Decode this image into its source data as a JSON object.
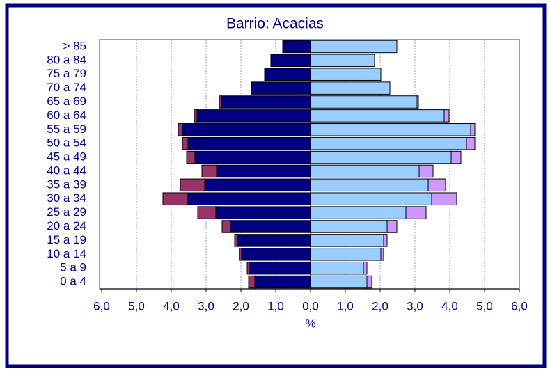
{
  "chart_data": {
    "type": "pyramid",
    "title": "Barrio: Acacias",
    "x_label": "%",
    "categories": [
      "0 a 4",
      "5 a 9",
      "10 a 14",
      "15 a 19",
      "20 a 24",
      "25 a 29",
      "30 a 34",
      "35 a 39",
      "40 a 44",
      "45 a 49",
      "50 a 54",
      "55 a 59",
      "60 a 64",
      "65 a 69",
      "70 a 74",
      "75 a 79",
      "80 a 84",
      "> 85"
    ],
    "series": [
      {
        "color": "#000080",
        "side": "left",
        "values": [
          1.6,
          1.76,
          1.98,
          2.1,
          2.3,
          2.72,
          3.54,
          3.04,
          2.7,
          3.32,
          3.52,
          3.68,
          3.26,
          2.56,
          1.7,
          1.32,
          1.14,
          0.8
        ]
      },
      {
        "color": "#993366",
        "side": "left",
        "values": [
          0.18,
          0.06,
          0.06,
          0.08,
          0.24,
          0.52,
          0.7,
          0.7,
          0.42,
          0.24,
          0.16,
          0.12,
          0.08,
          0.06,
          0,
          0,
          0,
          0
        ]
      },
      {
        "color": "#99ccff",
        "side": "right",
        "values": [
          1.62,
          1.52,
          2.02,
          2.1,
          2.2,
          2.74,
          3.48,
          3.38,
          3.12,
          4.04,
          4.48,
          4.6,
          3.84,
          3.06,
          2.28,
          2.02,
          1.84,
          2.48
        ]
      },
      {
        "color": "#cc99ff",
        "side": "right",
        "values": [
          0.14,
          0.1,
          0.08,
          0.1,
          0.28,
          0.58,
          0.72,
          0.5,
          0.4,
          0.28,
          0.24,
          0.12,
          0.14,
          0.04,
          0,
          0,
          0,
          0
        ]
      }
    ],
    "xlim": [
      -6,
      6
    ],
    "xticks": [
      {
        "value": -6,
        "label": "6,0"
      },
      {
        "value": -5,
        "label": "5,0"
      },
      {
        "value": -4,
        "label": "4,0"
      },
      {
        "value": -3,
        "label": "3,0"
      },
      {
        "value": -2,
        "label": "2,0"
      },
      {
        "value": -1,
        "label": "1,0"
      },
      {
        "value": 0,
        "label": "0,0"
      },
      {
        "value": 1,
        "label": "1,0"
      },
      {
        "value": 2,
        "label": "2,0"
      },
      {
        "value": 3,
        "label": "3,0"
      },
      {
        "value": 4,
        "label": "4,0"
      },
      {
        "value": 5,
        "label": "5,0"
      },
      {
        "value": 6,
        "label": "6,0"
      }
    ],
    "grid": true
  }
}
